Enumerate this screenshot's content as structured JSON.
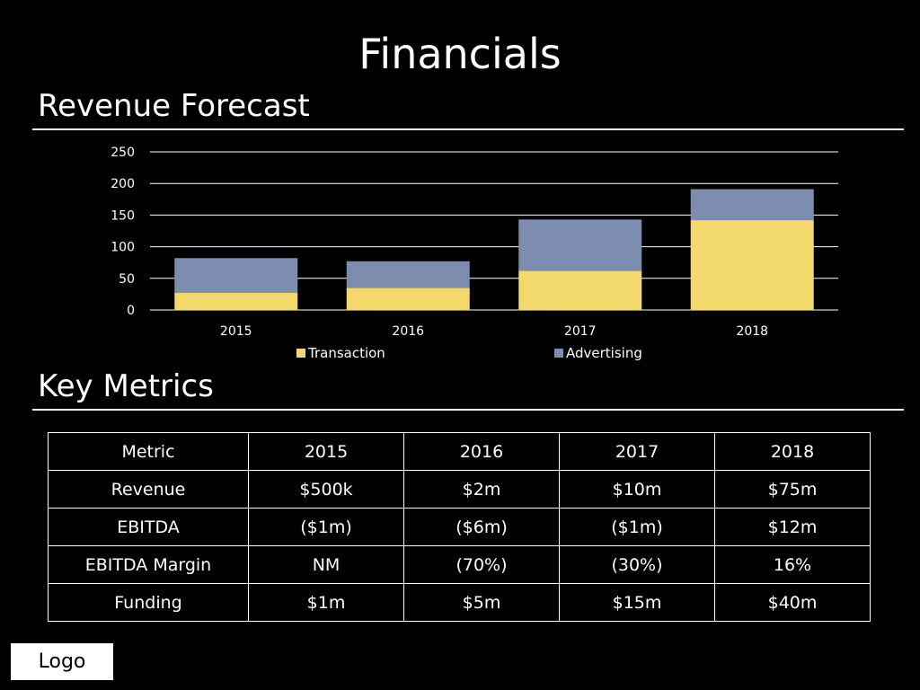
{
  "slide": {
    "title": "Financials",
    "section_revenue": "Revenue Forecast",
    "section_metrics": "Key Metrics",
    "logo": "Logo"
  },
  "chart_data": {
    "type": "bar",
    "stacked": true,
    "categories": [
      "2015",
      "2016",
      "2017",
      "2018"
    ],
    "series": [
      {
        "name": "Transaction",
        "values": [
          27,
          35,
          62,
          142
        ],
        "color": "#f3d96b"
      },
      {
        "name": "Advertising",
        "values": [
          55,
          42,
          81,
          49
        ],
        "color": "#7c8db0"
      }
    ],
    "yticks": [
      "0",
      "50",
      "100",
      "150",
      "200",
      "250"
    ],
    "ylim": [
      0,
      250
    ],
    "grid": true,
    "legend_position": "bottom",
    "title": "",
    "xlabel": "",
    "ylabel": ""
  },
  "metrics_table": {
    "header": [
      "Metric",
      "2015",
      "2016",
      "2017",
      "2018"
    ],
    "rows": [
      [
        "Revenue",
        "$500k",
        "$2m",
        "$10m",
        "$75m"
      ],
      [
        "EBITDA",
        "($1m)",
        "($6m)",
        "($1m)",
        "$12m"
      ],
      [
        "EBITDA Margin",
        "NM",
        "(70%)",
        "(30%)",
        "16%"
      ],
      [
        "Funding",
        "$1m",
        "$5m",
        "$15m",
        "$40m"
      ]
    ]
  }
}
